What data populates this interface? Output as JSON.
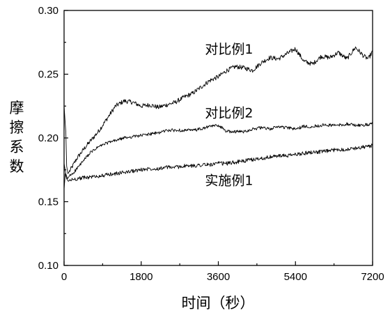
{
  "chart_data": {
    "type": "line",
    "xlabel": "时间（秒）",
    "ylabel": "摩擦系数",
    "xlim": [
      0,
      7200
    ],
    "ylim": [
      0.1,
      0.3
    ],
    "xticks": [
      0,
      1800,
      3600,
      5400,
      7200
    ],
    "xtick_labels": [
      "0",
      "1800",
      "3600",
      "5400",
      "7200"
    ],
    "yticks": [
      0.1,
      0.15,
      0.2,
      0.25,
      0.3
    ],
    "ytick_labels": [
      "0.10",
      "0.15",
      "0.20",
      "0.25",
      "0.30"
    ],
    "legend": "inline labels",
    "series": [
      {
        "name": "对比例1",
        "label_text": "对比例1",
        "label_at": [
          3850,
          0.266
        ],
        "noise": 0.0018,
        "x": [
          0,
          40,
          60,
          90,
          150,
          300,
          500,
          800,
          1000,
          1200,
          1400,
          1600,
          1800,
          2000,
          2200,
          2400,
          2600,
          2800,
          3000,
          3200,
          3400,
          3600,
          3800,
          4000,
          4200,
          4400,
          4600,
          4800,
          5000,
          5200,
          5400,
          5600,
          5800,
          6000,
          6200,
          6400,
          6600,
          6800,
          7000,
          7100,
          7200
        ],
        "y": [
          0.225,
          0.205,
          0.178,
          0.172,
          0.175,
          0.184,
          0.193,
          0.205,
          0.215,
          0.225,
          0.229,
          0.228,
          0.225,
          0.226,
          0.224,
          0.226,
          0.228,
          0.232,
          0.235,
          0.24,
          0.245,
          0.248,
          0.253,
          0.256,
          0.255,
          0.253,
          0.259,
          0.263,
          0.262,
          0.266,
          0.27,
          0.26,
          0.258,
          0.264,
          0.263,
          0.267,
          0.262,
          0.271,
          0.264,
          0.262,
          0.268
        ]
      },
      {
        "name": "对比例2",
        "label_text": "对比例2",
        "label_at": [
          3850,
          0.216
        ],
        "noise": 0.0012,
        "x": [
          0,
          40,
          80,
          120,
          200,
          400,
          600,
          800,
          1000,
          1200,
          1400,
          1600,
          1800,
          2000,
          2200,
          2400,
          2600,
          2800,
          3000,
          3200,
          3400,
          3600,
          3800,
          4000,
          4200,
          4400,
          4600,
          4800,
          5000,
          5200,
          5400,
          5600,
          5800,
          6000,
          6200,
          6400,
          6600,
          6800,
          7000,
          7200
        ],
        "y": [
          0.18,
          0.172,
          0.168,
          0.17,
          0.172,
          0.18,
          0.188,
          0.193,
          0.196,
          0.198,
          0.2,
          0.201,
          0.202,
          0.203,
          0.204,
          0.206,
          0.206,
          0.206,
          0.206,
          0.207,
          0.209,
          0.21,
          0.205,
          0.205,
          0.205,
          0.207,
          0.208,
          0.207,
          0.209,
          0.208,
          0.207,
          0.209,
          0.209,
          0.21,
          0.21,
          0.21,
          0.211,
          0.21,
          0.21,
          0.211
        ]
      },
      {
        "name": "实施例1",
        "label_text": "实施例1",
        "label_at": [
          3850,
          0.163
        ],
        "noise": 0.0015,
        "x": [
          0,
          30,
          60,
          100,
          150,
          300,
          500,
          800,
          1000,
          1200,
          1400,
          1600,
          1800,
          2000,
          2200,
          2400,
          2600,
          2800,
          3000,
          3200,
          3400,
          3600,
          3800,
          4000,
          4200,
          4400,
          4600,
          4800,
          5000,
          5200,
          5400,
          5600,
          5800,
          6000,
          6200,
          6400,
          6600,
          6800,
          7000,
          7200
        ],
        "y": [
          0.16,
          0.172,
          0.168,
          0.166,
          0.167,
          0.168,
          0.169,
          0.17,
          0.171,
          0.172,
          0.173,
          0.174,
          0.175,
          0.176,
          0.176,
          0.177,
          0.177,
          0.178,
          0.178,
          0.179,
          0.179,
          0.18,
          0.18,
          0.181,
          0.182,
          0.183,
          0.184,
          0.185,
          0.186,
          0.186,
          0.187,
          0.188,
          0.189,
          0.189,
          0.19,
          0.191,
          0.191,
          0.192,
          0.193,
          0.194
        ]
      }
    ]
  }
}
